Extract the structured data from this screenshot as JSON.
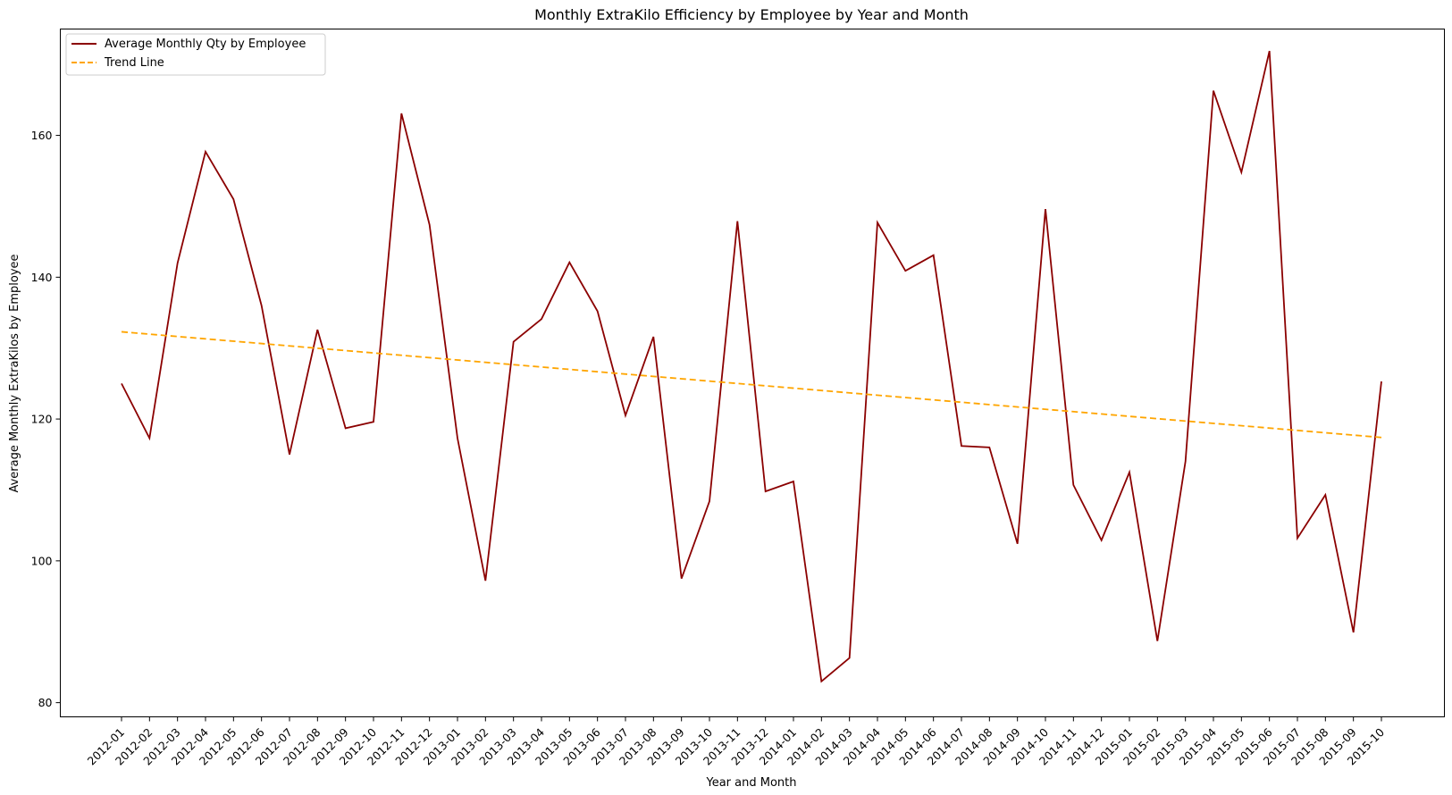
{
  "chart_data": {
    "type": "line",
    "title": "Monthly ExtraKilo Efficiency by Employee by Year and Month",
    "xlabel": "Year and Month",
    "ylabel": "Average Monthly ExtraKilos by Employee",
    "ylim": [
      78,
      175
    ],
    "yticks": [
      80,
      100,
      120,
      140,
      160
    ],
    "grid": false,
    "legend_position": "top-left",
    "categories": [
      "2012-01",
      "2012-02",
      "2012-03",
      "2012-04",
      "2012-05",
      "2012-06",
      "2012-07",
      "2012-08",
      "2012-09",
      "2012-10",
      "2012-11",
      "2012-12",
      "2013-01",
      "2013-02",
      "2013-03",
      "2013-04",
      "2013-05",
      "2013-06",
      "2013-07",
      "2013-08",
      "2013-09",
      "2013-10",
      "2013-11",
      "2013-12",
      "2014-01",
      "2014-02",
      "2014-03",
      "2014-04",
      "2014-05",
      "2014-06",
      "2014-07",
      "2014-08",
      "2014-09",
      "2014-10",
      "2014-11",
      "2014-12",
      "2015-01",
      "2015-02",
      "2015-03",
      "2015-04",
      "2015-05",
      "2015-06",
      "2015-07",
      "2015-08",
      "2015-09",
      "2015-10"
    ],
    "series": [
      {
        "name": "Average Monthly Qty by Employee",
        "color": "#8b0000",
        "style": "solid",
        "values": [
          125.0,
          117.3,
          142.0,
          157.7,
          151.0,
          136.0,
          115.0,
          132.6,
          118.7,
          119.6,
          163.1,
          147.4,
          117.3,
          97.2,
          130.9,
          134.1,
          142.1,
          135.2,
          120.5,
          131.6,
          97.5,
          108.4,
          147.9,
          109.8,
          111.2,
          83.0,
          86.3,
          147.7,
          140.9,
          143.1,
          116.2,
          116.0,
          102.4,
          149.6,
          110.7,
          102.9,
          112.5,
          88.7,
          114.0,
          166.3,
          154.8,
          171.9,
          103.2,
          109.3,
          89.9,
          125.3
        ]
      },
      {
        "name": "Trend Line",
        "color": "#ffa500",
        "style": "dashed",
        "start": 132.3,
        "end": 117.4
      }
    ]
  }
}
